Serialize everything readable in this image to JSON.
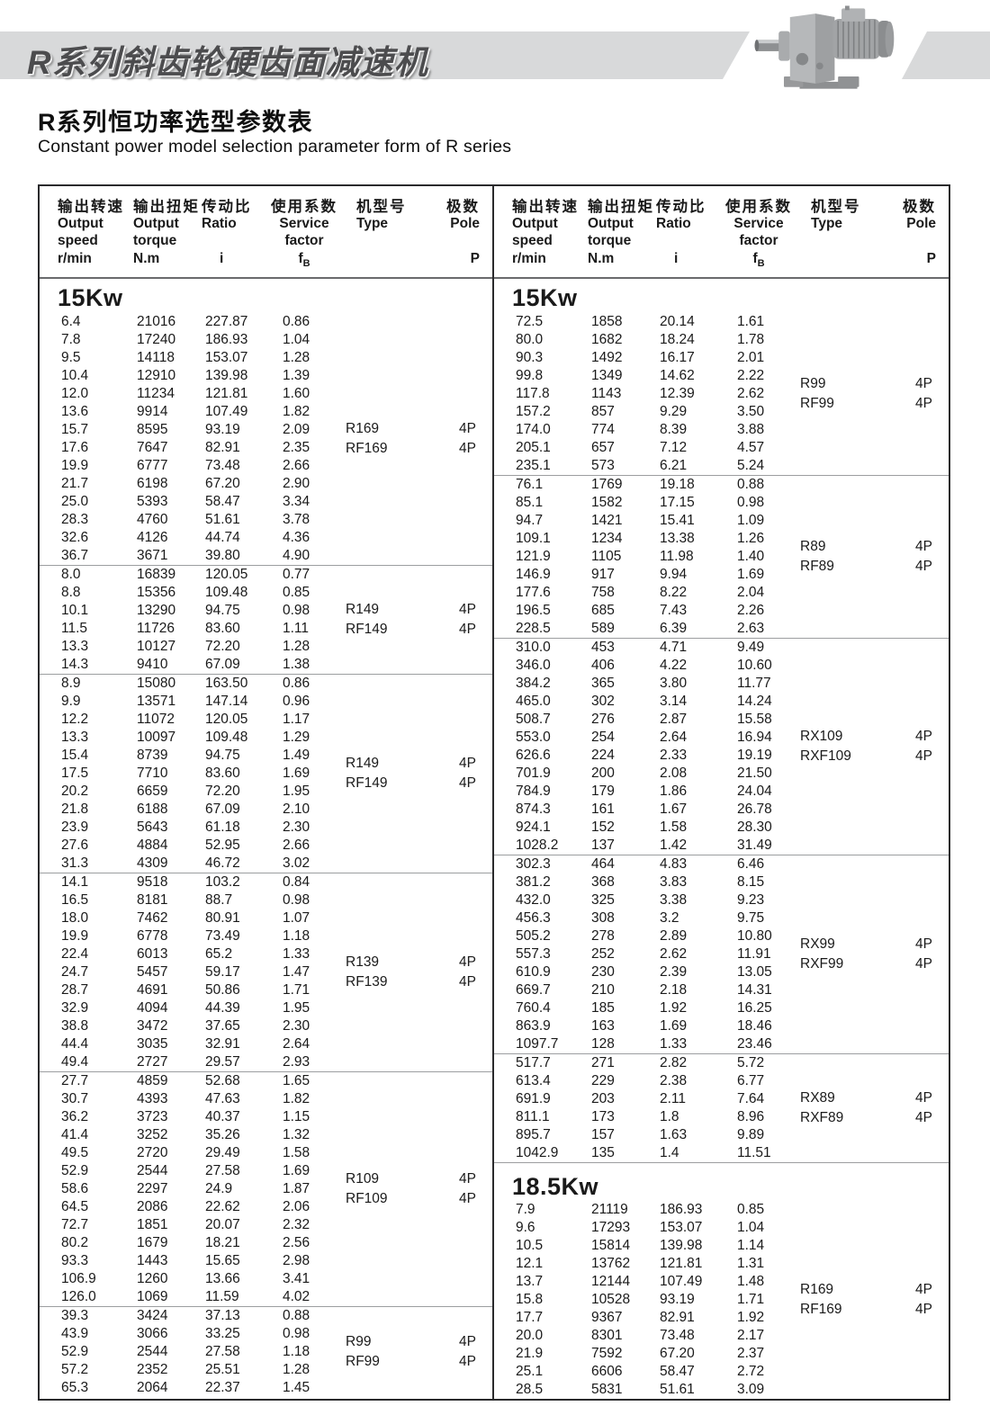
{
  "banner": {
    "title": "R系列斜齿轮硬齿面减速机"
  },
  "page_title": {
    "zh": "R系列恒功率选型参数表",
    "en": "Constant power model selection parameter form of R series"
  },
  "table": {
    "columns": [
      {
        "zh": "输出转速",
        "l1": "Output",
        "l2": "speed",
        "unit": "r/min"
      },
      {
        "zh": "输出扭矩",
        "l1": "Output",
        "l2": "torque",
        "unit": "N.m"
      },
      {
        "zh": "传动比",
        "l1": "Ratio",
        "l2": "",
        "unit": "i"
      },
      {
        "zh": "使用系数",
        "l1": "Service",
        "l2": "factor",
        "unit_main": "f",
        "unit_sub": "B"
      },
      {
        "zh": "机型号",
        "l1": "Type",
        "l2": "",
        "unit": ""
      },
      {
        "zh": "极数",
        "l1": "Pole",
        "l2": "",
        "unit": "P"
      }
    ],
    "left_sections": [
      {
        "power": "15Kw",
        "groups": [
          {
            "types": [
              "R169",
              "RF169"
            ],
            "poles": [
              "4P",
              "4P"
            ],
            "rows": [
              [
                "6.4",
                "21016",
                "227.87",
                "0.86"
              ],
              [
                "7.8",
                "17240",
                "186.93",
                "1.04"
              ],
              [
                "9.5",
                "14118",
                "153.07",
                "1.28"
              ],
              [
                "10.4",
                "12910",
                "139.98",
                "1.39"
              ],
              [
                "12.0",
                "11234",
                "121.81",
                "1.60"
              ],
              [
                "13.6",
                "9914",
                "107.49",
                "1.82"
              ],
              [
                "15.7",
                "8595",
                "93.19",
                "2.09"
              ],
              [
                "17.6",
                "7647",
                "82.91",
                "2.35"
              ],
              [
                "19.9",
                "6777",
                "73.48",
                "2.66"
              ],
              [
                "21.7",
                "6198",
                "67.20",
                "2.90"
              ],
              [
                "25.0",
                "5393",
                "58.47",
                "3.34"
              ],
              [
                "28.3",
                "4760",
                "51.61",
                "3.78"
              ],
              [
                "32.6",
                "4126",
                "44.74",
                "4.36"
              ],
              [
                "36.7",
                "3671",
                "39.80",
                "4.90"
              ]
            ]
          },
          {
            "types": [
              "R149",
              "RF149"
            ],
            "poles": [
              "4P",
              "4P"
            ],
            "rows": [
              [
                "8.0",
                "16839",
                "120.05",
                "0.77"
              ],
              [
                "8.8",
                "15356",
                "109.48",
                "0.85"
              ],
              [
                "10.1",
                "13290",
                "94.75",
                "0.98"
              ],
              [
                "11.5",
                "11726",
                "83.60",
                "1.11"
              ],
              [
                "13.3",
                "10127",
                "72.20",
                "1.28"
              ],
              [
                "14.3",
                "9410",
                "67.09",
                "1.38"
              ]
            ]
          },
          {
            "types": [
              "R149",
              "RF149"
            ],
            "poles": [
              "4P",
              "4P"
            ],
            "rows": [
              [
                "8.9",
                "15080",
                "163.50",
                "0.86"
              ],
              [
                "9.9",
                "13571",
                "147.14",
                "0.96"
              ],
              [
                "12.2",
                "11072",
                "120.05",
                "1.17"
              ],
              [
                "13.3",
                "10097",
                "109.48",
                "1.29"
              ],
              [
                "15.4",
                "8739",
                "94.75",
                "1.49"
              ],
              [
                "17.5",
                "7710",
                "83.60",
                "1.69"
              ],
              [
                "20.2",
                "6659",
                "72.20",
                "1.95"
              ],
              [
                "21.8",
                "6188",
                "67.09",
                "2.10"
              ],
              [
                "23.9",
                "5643",
                "61.18",
                "2.30"
              ],
              [
                "27.6",
                "4884",
                "52.95",
                "2.66"
              ],
              [
                "31.3",
                "4309",
                "46.72",
                "3.02"
              ]
            ]
          },
          {
            "types": [
              "R139",
              "RF139"
            ],
            "poles": [
              "4P",
              "4P"
            ],
            "rows": [
              [
                "14.1",
                "9518",
                "103.2",
                "0.84"
              ],
              [
                "16.5",
                "8181",
                "88.7",
                "0.98"
              ],
              [
                "18.0",
                "7462",
                "80.91",
                "1.07"
              ],
              [
                "19.9",
                "6778",
                "73.49",
                "1.18"
              ],
              [
                "22.4",
                "6013",
                "65.2",
                "1.33"
              ],
              [
                "24.7",
                "5457",
                "59.17",
                "1.47"
              ],
              [
                "28.7",
                "4691",
                "50.86",
                "1.71"
              ],
              [
                "32.9",
                "4094",
                "44.39",
                "1.95"
              ],
              [
                "38.8",
                "3472",
                "37.65",
                "2.30"
              ],
              [
                "44.4",
                "3035",
                "32.91",
                "2.64"
              ],
              [
                "49.4",
                "2727",
                "29.57",
                "2.93"
              ]
            ]
          },
          {
            "types": [
              "R109",
              "RF109"
            ],
            "poles": [
              "4P",
              "4P"
            ],
            "rows": [
              [
                "27.7",
                "4859",
                "52.68",
                "1.65"
              ],
              [
                "30.7",
                "4393",
                "47.63",
                "1.82"
              ],
              [
                "36.2",
                "3723",
                "40.37",
                "1.15"
              ],
              [
                "41.4",
                "3252",
                "35.26",
                "1.32"
              ],
              [
                "49.5",
                "2720",
                "29.49",
                "1.58"
              ],
              [
                "52.9",
                "2544",
                "27.58",
                "1.69"
              ],
              [
                "58.6",
                "2297",
                "24.9",
                "1.87"
              ],
              [
                "64.5",
                "2086",
                "22.62",
                "2.06"
              ],
              [
                "72.7",
                "1851",
                "20.07",
                "2.32"
              ],
              [
                "80.2",
                "1679",
                "18.21",
                "2.56"
              ],
              [
                "93.3",
                "1443",
                "15.65",
                "2.98"
              ],
              [
                "106.9",
                "1260",
                "13.66",
                "3.41"
              ],
              [
                "126.0",
                "1069",
                "11.59",
                "4.02"
              ]
            ]
          },
          {
            "types": [
              "R99",
              "RF99"
            ],
            "poles": [
              "4P",
              "4P"
            ],
            "rows": [
              [
                "39.3",
                "3424",
                "37.13",
                "0.88"
              ],
              [
                "43.9",
                "3066",
                "33.25",
                "0.98"
              ],
              [
                "52.9",
                "2544",
                "27.58",
                "1.18"
              ],
              [
                "57.2",
                "2352",
                "25.51",
                "1.28"
              ],
              [
                "65.3",
                "2064",
                "22.37",
                "1.45"
              ]
            ]
          }
        ]
      }
    ],
    "right_sections": [
      {
        "power": "15Kw",
        "groups": [
          {
            "types": [
              "R99",
              "RF99"
            ],
            "poles": [
              "4P",
              "4P"
            ],
            "rows": [
              [
                "72.5",
                "1858",
                "20.14",
                "1.61"
              ],
              [
                "80.0",
                "1682",
                "18.24",
                "1.78"
              ],
              [
                "90.3",
                "1492",
                "16.17",
                "2.01"
              ],
              [
                "99.8",
                "1349",
                "14.62",
                "2.22"
              ],
              [
                "117.8",
                "1143",
                "12.39",
                "2.62"
              ],
              [
                "157.2",
                "857",
                "9.29",
                "3.50"
              ],
              [
                "174.0",
                "774",
                "8.39",
                "3.88"
              ],
              [
                "205.1",
                "657",
                "7.12",
                "4.57"
              ],
              [
                "235.1",
                "573",
                "6.21",
                "5.24"
              ]
            ]
          },
          {
            "types": [
              "R89",
              "RF89"
            ],
            "poles": [
              "4P",
              "4P"
            ],
            "rows": [
              [
                "76.1",
                "1769",
                "19.18",
                "0.88"
              ],
              [
                "85.1",
                "1582",
                "17.15",
                "0.98"
              ],
              [
                "94.7",
                "1421",
                "15.41",
                "1.09"
              ],
              [
                "109.1",
                "1234",
                "13.38",
                "1.26"
              ],
              [
                "121.9",
                "1105",
                "11.98",
                "1.40"
              ],
              [
                "146.9",
                "917",
                "9.94",
                "1.69"
              ],
              [
                "177.6",
                "758",
                "8.22",
                "2.04"
              ],
              [
                "196.5",
                "685",
                "7.43",
                "2.26"
              ],
              [
                "228.5",
                "589",
                "6.39",
                "2.63"
              ]
            ]
          },
          {
            "types": [
              "RX109",
              "RXF109"
            ],
            "poles": [
              "4P",
              "4P"
            ],
            "rows": [
              [
                "310.0",
                "453",
                "4.71",
                "9.49"
              ],
              [
                "346.0",
                "406",
                "4.22",
                "10.60"
              ],
              [
                "384.2",
                "365",
                "3.80",
                "11.77"
              ],
              [
                "465.0",
                "302",
                "3.14",
                "14.24"
              ],
              [
                "508.7",
                "276",
                "2.87",
                "15.58"
              ],
              [
                "553.0",
                "254",
                "2.64",
                "16.94"
              ],
              [
                "626.6",
                "224",
                "2.33",
                "19.19"
              ],
              [
                "701.9",
                "200",
                "2.08",
                "21.50"
              ],
              [
                "784.9",
                "179",
                "1.86",
                "24.04"
              ],
              [
                "874.3",
                "161",
                "1.67",
                "26.78"
              ],
              [
                "924.1",
                "152",
                "1.58",
                "28.30"
              ],
              [
                "1028.2",
                "137",
                "1.42",
                "31.49"
              ]
            ]
          },
          {
            "types": [
              "RX99",
              "RXF99"
            ],
            "poles": [
              "4P",
              "4P"
            ],
            "rows": [
              [
                "302.3",
                "464",
                "4.83",
                "6.46"
              ],
              [
                "381.2",
                "368",
                "3.83",
                "8.15"
              ],
              [
                "432.0",
                "325",
                "3.38",
                "9.23"
              ],
              [
                "456.3",
                "308",
                "3.2",
                "9.75"
              ],
              [
                "505.2",
                "278",
                "2.89",
                "10.80"
              ],
              [
                "557.3",
                "252",
                "2.62",
                "11.91"
              ],
              [
                "610.9",
                "230",
                "2.39",
                "13.05"
              ],
              [
                "669.7",
                "210",
                "2.18",
                "14.31"
              ],
              [
                "760.4",
                "185",
                "1.92",
                "16.25"
              ],
              [
                "863.9",
                "163",
                "1.69",
                "18.46"
              ],
              [
                "1097.7",
                "128",
                "1.33",
                "23.46"
              ]
            ]
          },
          {
            "types": [
              "RX89",
              "RXF89"
            ],
            "poles": [
              "4P",
              "4P"
            ],
            "rows": [
              [
                "517.7",
                "271",
                "2.82",
                "5.72"
              ],
              [
                "613.4",
                "229",
                "2.38",
                "6.77"
              ],
              [
                "691.9",
                "203",
                "2.11",
                "7.64"
              ],
              [
                "811.1",
                "173",
                "1.8",
                "8.96"
              ],
              [
                "895.7",
                "157",
                "1.63",
                "9.89"
              ],
              [
                "1042.9",
                "135",
                "1.4",
                "11.51"
              ]
            ]
          }
        ]
      },
      {
        "power": "18.5Kw",
        "groups": [
          {
            "types": [
              "R169",
              "RF169"
            ],
            "poles": [
              "4P",
              "4P"
            ],
            "rows": [
              [
                "7.9",
                "21119",
                "186.93",
                "0.85"
              ],
              [
                "9.6",
                "17293",
                "153.07",
                "1.04"
              ],
              [
                "10.5",
                "15814",
                "139.98",
                "1.14"
              ],
              [
                "12.1",
                "13762",
                "121.81",
                "1.31"
              ],
              [
                "13.7",
                "12144",
                "107.49",
                "1.48"
              ],
              [
                "15.8",
                "10528",
                "93.19",
                "1.71"
              ],
              [
                "17.7",
                "9367",
                "82.91",
                "1.92"
              ],
              [
                "20.0",
                "8301",
                "73.48",
                "2.17"
              ],
              [
                "21.9",
                "7592",
                "67.20",
                "2.37"
              ],
              [
                "25.1",
                "6606",
                "58.47",
                "2.72"
              ],
              [
                "28.5",
                "5831",
                "51.61",
                "3.09"
              ]
            ]
          }
        ]
      }
    ]
  }
}
